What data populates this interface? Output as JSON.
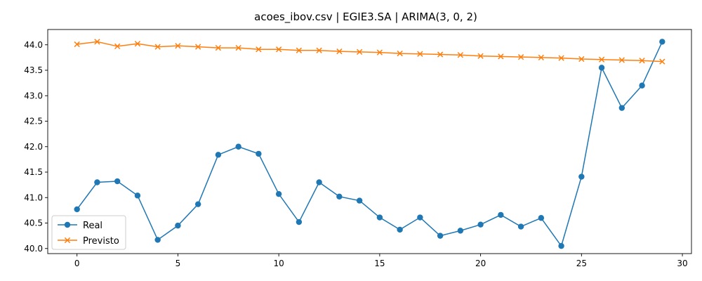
{
  "chart_data": {
    "type": "line",
    "title": "acoes_ibov.csv | EGIE3.SA | ARIMA(3, 0, 2)",
    "xlabel": "",
    "ylabel": "",
    "xlim": [
      -1.45,
      30.45
    ],
    "ylim": [
      39.9,
      44.3
    ],
    "x_ticks": [
      0,
      5,
      10,
      15,
      20,
      25,
      30
    ],
    "y_ticks": [
      40.0,
      40.5,
      41.0,
      41.5,
      42.0,
      42.5,
      43.0,
      43.5,
      44.0
    ],
    "y_tick_labels": [
      "40.0",
      "40.5",
      "41.0",
      "41.5",
      "42.0",
      "42.5",
      "43.0",
      "43.5",
      "44.0"
    ],
    "grid": false,
    "legend_position": "lower-left",
    "x": [
      0,
      1,
      2,
      3,
      4,
      5,
      6,
      7,
      8,
      9,
      10,
      11,
      12,
      13,
      14,
      15,
      16,
      17,
      18,
      19,
      20,
      21,
      22,
      23,
      24,
      25,
      26,
      27,
      28,
      29
    ],
    "series": [
      {
        "name": "Real",
        "color": "#1f77b4",
        "marker": "circle",
        "values": [
          40.77,
          41.3,
          41.32,
          41.04,
          40.17,
          40.45,
          40.87,
          41.84,
          42.0,
          41.86,
          41.07,
          40.52,
          41.3,
          41.02,
          40.94,
          40.61,
          40.37,
          40.61,
          40.25,
          40.35,
          40.47,
          40.66,
          40.43,
          40.6,
          40.05,
          41.41,
          43.55,
          42.76,
          43.2,
          44.06
        ]
      },
      {
        "name": "Previsto",
        "color": "#ff7f0e",
        "marker": "x",
        "values": [
          44.01,
          44.06,
          43.97,
          44.02,
          43.96,
          43.98,
          43.96,
          43.94,
          43.94,
          43.91,
          43.91,
          43.89,
          43.89,
          43.87,
          43.86,
          43.85,
          43.83,
          43.82,
          43.81,
          43.8,
          43.78,
          43.77,
          43.76,
          43.75,
          43.74,
          43.72,
          43.71,
          43.7,
          43.69,
          43.67
        ]
      }
    ]
  }
}
